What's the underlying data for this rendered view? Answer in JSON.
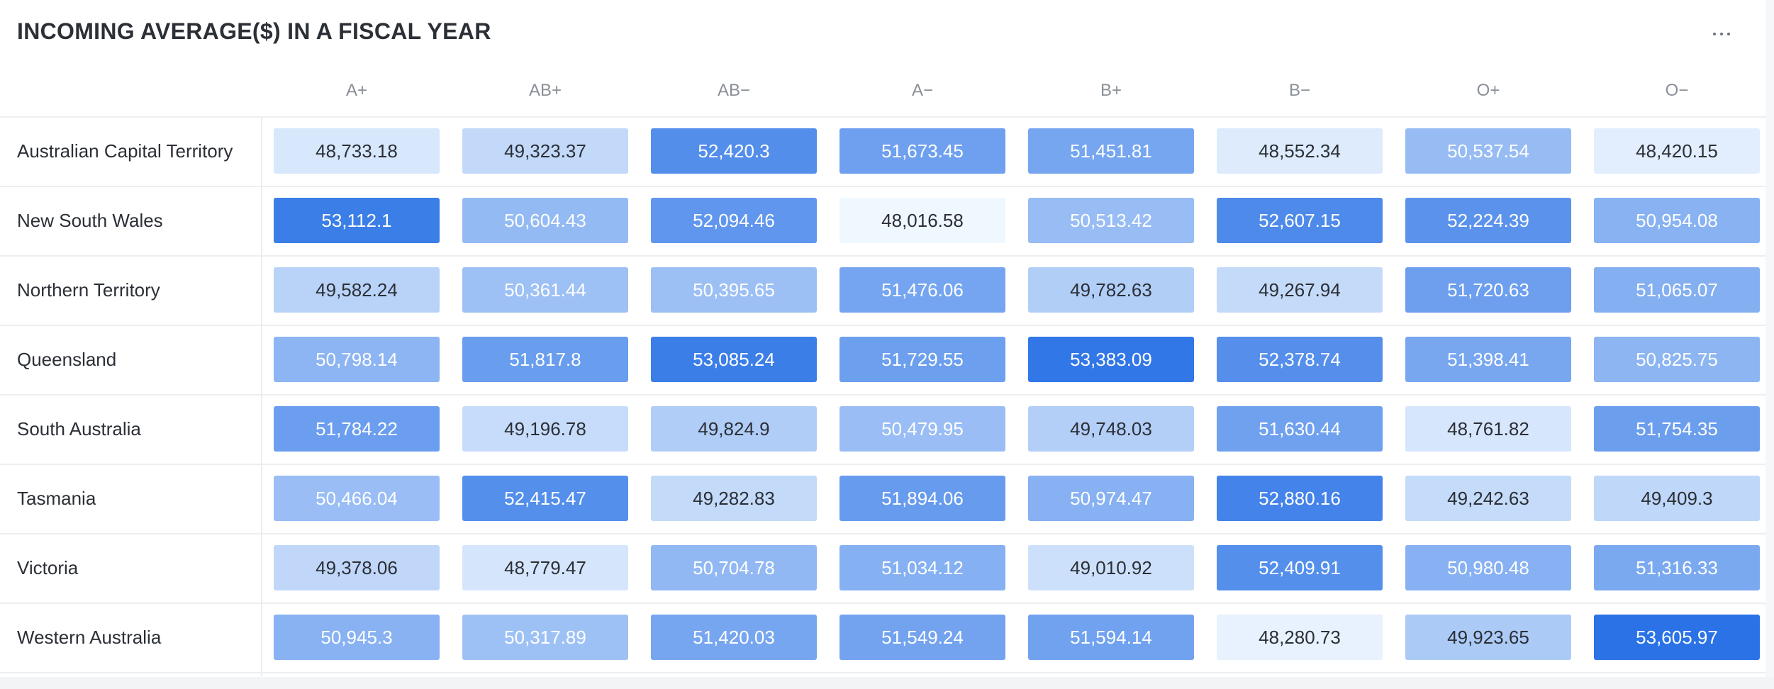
{
  "title": "INCOMING AVERAGE($) IN A FISCAL YEAR",
  "menu_icon": "more-horizontal-icon",
  "colors": {
    "scale_low": "#f0f8ff",
    "scale_high": "#2a72e6",
    "text_dark": "#2b2f36",
    "text_light": "#ffffff"
  },
  "chart_data": {
    "type": "heatmap",
    "title": "INCOMING AVERAGE($) IN A FISCAL YEAR",
    "columns": [
      "A+",
      "AB+",
      "AB−",
      "A−",
      "B+",
      "B−",
      "O+",
      "O−"
    ],
    "rows": [
      "Australian Capital Territory",
      "New South Wales",
      "Northern Territory",
      "Queensland",
      "South Australia",
      "Tasmania",
      "Victoria",
      "Western Australia"
    ],
    "values": [
      [
        48733.18,
        49323.37,
        52420.3,
        51673.45,
        51451.81,
        48552.34,
        50537.54,
        48420.15
      ],
      [
        53112.1,
        50604.43,
        52094.46,
        48016.58,
        50513.42,
        52607.15,
        52224.39,
        50954.08
      ],
      [
        49582.24,
        50361.44,
        50395.65,
        51476.06,
        49782.63,
        49267.94,
        51720.63,
        51065.07
      ],
      [
        50798.14,
        51817.8,
        53085.24,
        51729.55,
        53383.09,
        52378.74,
        51398.41,
        50825.75
      ],
      [
        51784.22,
        49196.78,
        49824.9,
        50479.95,
        49748.03,
        51630.44,
        48761.82,
        51754.35
      ],
      [
        50466.04,
        52415.47,
        49282.83,
        51894.06,
        50974.47,
        52880.16,
        49242.63,
        49409.3
      ],
      [
        49378.06,
        48779.47,
        50704.78,
        51034.12,
        49010.92,
        52409.91,
        50980.48,
        51316.33
      ],
      [
        50945.3,
        50317.89,
        51420.03,
        51549.24,
        51594.14,
        48280.73,
        49923.65,
        53605.97
      ]
    ],
    "labels": [
      [
        "48,733.18",
        "49,323.37",
        "52,420.3",
        "51,673.45",
        "51,451.81",
        "48,552.34",
        "50,537.54",
        "48,420.15"
      ],
      [
        "53,112.1",
        "50,604.43",
        "52,094.46",
        "48,016.58",
        "50,513.42",
        "52,607.15",
        "52,224.39",
        "50,954.08"
      ],
      [
        "49,582.24",
        "50,361.44",
        "50,395.65",
        "51,476.06",
        "49,782.63",
        "49,267.94",
        "51,720.63",
        "51,065.07"
      ],
      [
        "50,798.14",
        "51,817.8",
        "53,085.24",
        "51,729.55",
        "53,383.09",
        "52,378.74",
        "51,398.41",
        "50,825.75"
      ],
      [
        "51,784.22",
        "49,196.78",
        "49,824.9",
        "50,479.95",
        "49,748.03",
        "51,630.44",
        "48,761.82",
        "51,754.35"
      ],
      [
        "50,466.04",
        "52,415.47",
        "49,282.83",
        "51,894.06",
        "50,974.47",
        "52,880.16",
        "49,242.63",
        "49,409.3"
      ],
      [
        "49,378.06",
        "48,779.47",
        "50,704.78",
        "51,034.12",
        "49,010.92",
        "52,409.91",
        "50,980.48",
        "51,316.33"
      ],
      [
        "50,945.3",
        "50,317.89",
        "51,420.03",
        "51,549.24",
        "51,594.14",
        "48,280.73",
        "49,923.65",
        "53,605.97"
      ]
    ]
  }
}
